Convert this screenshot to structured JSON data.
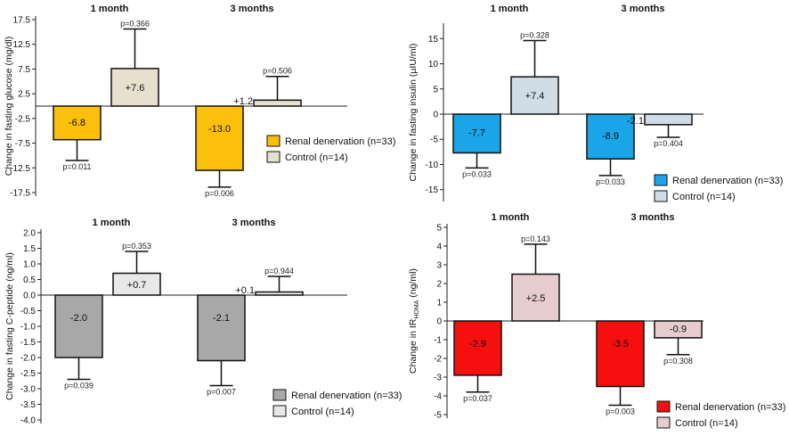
{
  "chart_data": [
    {
      "type": "bar",
      "ylabel": "Change in fasting glucose (mg/dl)",
      "ylabel_sub": "",
      "ylabel_after": "",
      "ylim": [
        -17.5,
        17.5
      ],
      "yticks": [
        17.5,
        12.5,
        7.5,
        2.5,
        -2.5,
        -7.5,
        -12.5,
        -17.5
      ],
      "ytick_labels": [
        "17.5",
        "12.5",
        "7.5",
        "2.5",
        "-2.5",
        "-7.5",
        "-12.5",
        "-17.5"
      ],
      "zero_label": "",
      "categories": [
        "1 month",
        "3 months"
      ],
      "series": [
        {
          "name": "Renal denervation (n=33)",
          "color": "#fbbf0c",
          "values": [
            -6.8,
            -13.0
          ],
          "value_labels": [
            "-6.8",
            "-13.0"
          ],
          "errors": [
            4.2,
            3.4
          ],
          "p_values": [
            "p=0.011",
            "p=0.006"
          ]
        },
        {
          "name": "Control (n=14)",
          "color": "#e6e0cc",
          "values": [
            7.6,
            1.2
          ],
          "value_labels": [
            "+7.6",
            "+1.2"
          ],
          "errors": [
            8.0,
            4.8
          ],
          "p_values": [
            "p=0.366",
            "p=0.506"
          ]
        }
      ]
    },
    {
      "type": "bar",
      "ylabel": "Change in fasting insulin (µIU/ml)",
      "ylabel_sub": "",
      "ylabel_after": "",
      "ylim": [
        -17,
        17
      ],
      "yticks": [
        15,
        10,
        5,
        0,
        -5,
        -10,
        -15
      ],
      "ytick_labels": [
        "15",
        "10",
        "5",
        "0",
        "-5",
        "-10",
        "-15"
      ],
      "zero_label": "",
      "categories": [
        "1 month",
        "3 months"
      ],
      "series": [
        {
          "name": "Renal denervation (n=33)",
          "color": "#1aa5e8",
          "values": [
            -7.7,
            -8.9
          ],
          "value_labels": [
            "-7.7",
            "-8.9"
          ],
          "errors": [
            3.0,
            3.3
          ],
          "p_values": [
            "p=0.033",
            "p=0.033"
          ]
        },
        {
          "name": "Control (n=14)",
          "color": "#d0dde6",
          "values": [
            7.4,
            -2.1
          ],
          "value_labels": [
            "+7.4",
            "-2.1"
          ],
          "errors": [
            7.2,
            2.5
          ],
          "p_values": [
            "p=0.328",
            "p=0.404"
          ]
        }
      ]
    },
    {
      "type": "bar",
      "ylabel": "Change in fasting C-peptide (ng/ml)",
      "ylabel_sub": "",
      "ylabel_after": "",
      "ylim": [
        -4.0,
        2.0
      ],
      "yticks": [
        2.0,
        1.5,
        1.0,
        0.5,
        0.0,
        -0.5,
        -1.0,
        -1.5,
        -2.0,
        -2.5,
        -3.0,
        -3.5,
        -4.0
      ],
      "ytick_labels": [
        "2.0",
        "1.5",
        "1.0",
        "0.5",
        "0.0",
        "-0.5",
        "-1.0",
        "-1.5",
        "-2.0",
        "-2.5",
        "-3.0",
        "-3.5",
        "-4.0"
      ],
      "zero_label": "",
      "categories": [
        "1 month",
        "3 months"
      ],
      "series": [
        {
          "name": "Renal denervation (n=33)",
          "color": "#a8a8a8",
          "values": [
            -2.0,
            -2.1
          ],
          "value_labels": [
            "-2.0",
            "-2.1"
          ],
          "errors": [
            0.7,
            0.8
          ],
          "p_values": [
            "p=0.039",
            "p=0.007"
          ]
        },
        {
          "name": "Control (n=14)",
          "color": "#e8e8e8",
          "values": [
            0.7,
            0.1
          ],
          "value_labels": [
            "+0.7",
            "+0.1"
          ],
          "errors": [
            0.7,
            0.5
          ],
          "p_values": [
            "p=0.353",
            "p=0.944"
          ]
        }
      ]
    },
    {
      "type": "bar",
      "ylabel": "Change in IR",
      "ylabel_sub": "HOMA",
      "ylabel_after": " (ng/ml)",
      "ylim": [
        -5,
        5
      ],
      "yticks": [
        5,
        4,
        3,
        2,
        1,
        0,
        -1,
        -2,
        -3,
        -4,
        -5
      ],
      "ytick_labels": [
        "5",
        "4",
        "3",
        "2",
        "1",
        "0",
        "-1",
        "-2",
        "-3",
        "-4",
        "-5"
      ],
      "zero_label": "",
      "categories": [
        "1 month",
        "3 months"
      ],
      "series": [
        {
          "name": "Renal denervation (n=33)",
          "color": "#f50f0f",
          "values": [
            -2.9,
            -3.5
          ],
          "value_labels": [
            "-2.9",
            "-3.5"
          ],
          "errors": [
            0.9,
            1.0
          ],
          "p_values": [
            "p=0.037",
            "p=0.003"
          ]
        },
        {
          "name": "Control (n=14)",
          "color": "#e6cccc",
          "values": [
            2.5,
            -0.9
          ],
          "value_labels": [
            "+2.5",
            "-0.9"
          ],
          "errors": [
            1.6,
            0.9
          ],
          "p_values": [
            "p=0.143",
            "p=0.308"
          ]
        }
      ]
    }
  ]
}
